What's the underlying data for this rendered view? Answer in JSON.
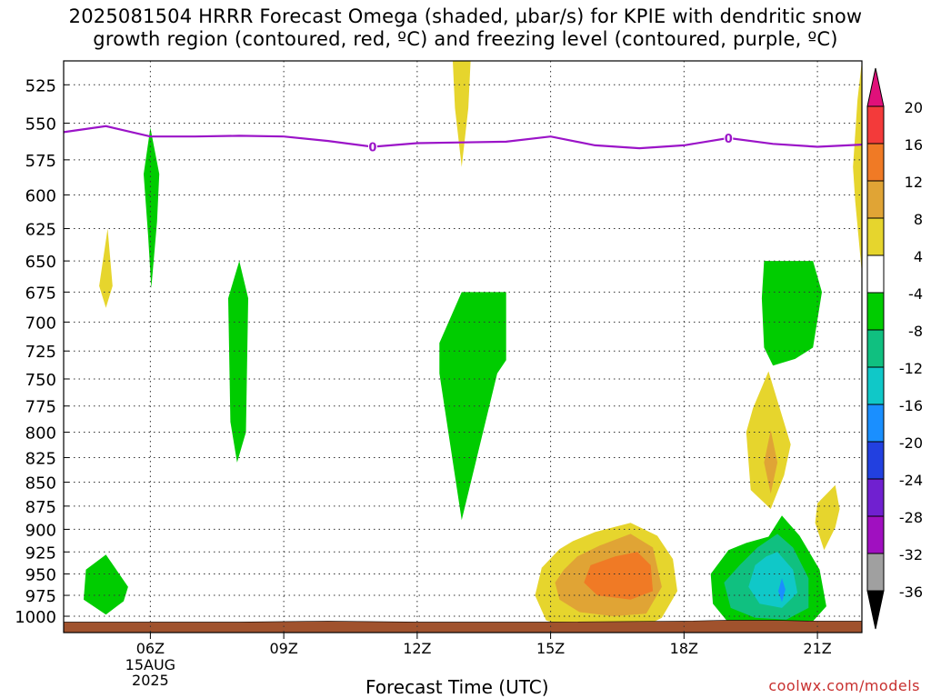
{
  "title_line1": "2025081504 HRRR Forecast Omega (shaded, µbar/s) for KPIE with dendritic snow",
  "title_line2": "growth region (contoured, red, ºC) and freezing level (contoured, purple, ºC)",
  "credit": "coolwx.com/models",
  "chart_data": {
    "type": "heatmap",
    "title": "2025081504 HRRR Forecast Omega (shaded, µbar/s) for KPIE with dendritic snow growth region (contoured, red, ºC) and freezing level (contoured, purple, ºC)",
    "xlabel": "Forecast Time (UTC)",
    "ylabel": "",
    "y_ticks": [
      "525",
      "550",
      "575",
      "600",
      "625",
      "650",
      "675",
      "700",
      "725",
      "750",
      "775",
      "800",
      "825",
      "850",
      "875",
      "900",
      "925",
      "950",
      "975",
      "1000"
    ],
    "y_range_mb": [
      510,
      1020
    ],
    "y_scale": "log pressure",
    "x_range_hours": [
      4.05,
      22.0
    ],
    "x_ticks": [
      {
        "hour": 6,
        "label": "06Z",
        "sub": [
          "15AUG",
          "2025"
        ]
      },
      {
        "hour": 9,
        "label": "09Z"
      },
      {
        "hour": 12,
        "label": "12Z"
      },
      {
        "hour": 15,
        "label": "15Z"
      },
      {
        "hour": 18,
        "label": "18Z"
      },
      {
        "hour": 21,
        "label": "21Z"
      }
    ],
    "grid": true,
    "colorbar": {
      "labels": [
        "20",
        "16",
        "12",
        "8",
        "4",
        "-4",
        "-8",
        "-12",
        "-16",
        "-20",
        "-24",
        "-28",
        "-32",
        "-36"
      ],
      "bins": [
        {
          "range": "16 to 20",
          "color": "#f33a3a"
        },
        {
          "range": "12 to 16",
          "color": "#f07a25"
        },
        {
          "range": "8 to 12",
          "color": "#e0a435"
        },
        {
          "range": "4 to 8",
          "color": "#e6d52d"
        },
        {
          "range": "-4 to 4",
          "color": "#ffffff"
        },
        {
          "range": "-8 to -4",
          "color": "#00cc00"
        },
        {
          "range": "-12 to -8",
          "color": "#10c080"
        },
        {
          "range": "-16 to -12",
          "color": "#10c8c8"
        },
        {
          "range": "-20 to -16",
          "color": "#1a8fff"
        },
        {
          "range": "-24 to -20",
          "color": "#2240e0"
        },
        {
          "range": "-28 to -24",
          "color": "#7020d0"
        },
        {
          "range": "-32 to -28",
          "color": "#a010c0"
        },
        {
          "range": "-36 to -32",
          "color": "#a0a0a0"
        }
      ],
      "top_extension_color": "#e0107a",
      "bottom_extension_color": "#000000"
    },
    "freezing_level": {
      "label": "0",
      "color": "#9b14c8",
      "points": [
        [
          4.05,
          556
        ],
        [
          5.0,
          552
        ],
        [
          6.0,
          559
        ],
        [
          7.0,
          559
        ],
        [
          8.0,
          558.5
        ],
        [
          9.0,
          559
        ],
        [
          10.0,
          562
        ],
        [
          11.0,
          566
        ],
        [
          12.0,
          563.5
        ],
        [
          13.0,
          563
        ],
        [
          14.0,
          562.5
        ],
        [
          15.0,
          559
        ],
        [
          16.0,
          565
        ],
        [
          17.0,
          567
        ],
        [
          18.0,
          565
        ],
        [
          19.0,
          560
        ],
        [
          20.0,
          564
        ],
        [
          21.0,
          566
        ],
        [
          22.0,
          564.5
        ]
      ]
    },
    "omega_regions": [
      {
        "value_range": "-8 to -4",
        "color": "#00cc00",
        "points": [
          [
            5.5,
            965
          ],
          [
            5.0,
            928
          ],
          [
            4.55,
            945
          ],
          [
            4.5,
            980
          ],
          [
            5.0,
            998
          ],
          [
            5.4,
            982
          ]
        ]
      },
      {
        "value_range": "4 to 8",
        "color": "#e6d52d",
        "points": [
          [
            5.04,
            625
          ],
          [
            4.85,
            670
          ],
          [
            5.0,
            688
          ],
          [
            5.15,
            670
          ]
        ]
      },
      {
        "value_range": "-8 to -4",
        "color": "#00cc00",
        "points": [
          [
            6.0,
            553
          ],
          [
            5.85,
            585
          ],
          [
            5.95,
            630
          ],
          [
            6.02,
            672
          ],
          [
            6.15,
            620
          ],
          [
            6.2,
            585
          ]
        ]
      },
      {
        "value_range": "-8 to -4",
        "color": "#00cc00",
        "points": [
          [
            8.0,
            650
          ],
          [
            7.75,
            680
          ],
          [
            7.8,
            790
          ],
          [
            7.95,
            830
          ],
          [
            8.15,
            800
          ],
          [
            8.2,
            680
          ]
        ]
      },
      {
        "value_range": "-8 to -4",
        "color": "#00cc00",
        "points": [
          [
            13.0,
            675
          ],
          [
            14.0,
            675
          ],
          [
            14.0,
            733
          ],
          [
            13.8,
            745
          ],
          [
            13.0,
            890
          ],
          [
            12.5,
            745
          ],
          [
            12.5,
            718
          ]
        ]
      },
      {
        "value_range": "4 to 8",
        "color": "#e6d52d",
        "points": [
          [
            13.0,
            510
          ],
          [
            13.2,
            510
          ],
          [
            13.15,
            540
          ],
          [
            13.0,
            580
          ],
          [
            12.85,
            540
          ],
          [
            12.8,
            510
          ]
        ]
      },
      {
        "value_range": "-8 to -4",
        "color": "#00cc00",
        "points": [
          [
            19.8,
            650
          ],
          [
            20.9,
            650
          ],
          [
            21.1,
            675
          ],
          [
            20.9,
            722
          ],
          [
            20.5,
            732
          ],
          [
            20.0,
            738
          ],
          [
            19.8,
            722
          ],
          [
            19.75,
            680
          ]
        ]
      },
      {
        "value_range": "4 to 8",
        "color": "#e6d52d",
        "points": [
          [
            19.9,
            743
          ],
          [
            19.55,
            777
          ],
          [
            19.4,
            800
          ],
          [
            19.5,
            858
          ],
          [
            19.95,
            878
          ],
          [
            20.25,
            843
          ],
          [
            20.4,
            812
          ],
          [
            20.1,
            770
          ]
        ]
      },
      {
        "value_range": "8 to 12",
        "color": "#e0a435",
        "points": [
          [
            19.95,
            798
          ],
          [
            19.8,
            830
          ],
          [
            19.95,
            862
          ],
          [
            20.1,
            830
          ]
        ]
      },
      {
        "value_range": "4 to 8",
        "color": "#e6d52d",
        "points": [
          [
            21.4,
            853
          ],
          [
            21.0,
            872
          ],
          [
            20.95,
            893
          ],
          [
            21.15,
            923
          ],
          [
            21.4,
            898
          ],
          [
            21.5,
            878
          ]
        ]
      },
      {
        "value_range": "4 to 8",
        "color": "#e6d52d",
        "points": [
          [
            22.0,
            510
          ],
          [
            21.9,
            535
          ],
          [
            21.8,
            580
          ],
          [
            21.85,
            605
          ],
          [
            22.0,
            660
          ]
        ]
      },
      {
        "value_range": "4 to 8",
        "color": "#e6d52d",
        "points": [
          [
            15.2,
            922
          ],
          [
            14.8,
            943
          ],
          [
            14.65,
            975
          ],
          [
            14.9,
            1005
          ],
          [
            15.3,
            1012
          ],
          [
            16.2,
            1018
          ],
          [
            17.0,
            1016
          ],
          [
            17.5,
            1002
          ],
          [
            17.85,
            970
          ],
          [
            17.75,
            933
          ],
          [
            17.4,
            907
          ],
          [
            16.8,
            893
          ],
          [
            16.0,
            903
          ],
          [
            15.5,
            913
          ]
        ]
      },
      {
        "value_range": "8 to 12",
        "color": "#e0a435",
        "points": [
          [
            15.3,
            945
          ],
          [
            15.1,
            960
          ],
          [
            15.2,
            980
          ],
          [
            15.65,
            995
          ],
          [
            16.4,
            1000
          ],
          [
            17.15,
            997
          ],
          [
            17.5,
            965
          ],
          [
            17.3,
            920
          ],
          [
            16.8,
            905
          ],
          [
            16.1,
            918
          ],
          [
            15.6,
            930
          ]
        ]
      },
      {
        "value_range": "12 to 16",
        "color": "#f07a25",
        "points": [
          [
            15.9,
            940
          ],
          [
            15.75,
            960
          ],
          [
            16.05,
            975
          ],
          [
            16.8,
            980
          ],
          [
            17.3,
            970
          ],
          [
            17.25,
            940
          ],
          [
            16.95,
            925
          ],
          [
            16.45,
            930
          ]
        ]
      },
      {
        "value_range": "-8 to -4",
        "color": "#00cc00",
        "points": [
          [
            19.0,
            923
          ],
          [
            18.6,
            950
          ],
          [
            18.65,
            985
          ],
          [
            19.0,
            1008
          ],
          [
            19.7,
            1015
          ],
          [
            20.3,
            1017
          ],
          [
            20.8,
            1012
          ],
          [
            21.2,
            988
          ],
          [
            21.05,
            945
          ],
          [
            20.6,
            907
          ],
          [
            20.2,
            885
          ],
          [
            19.9,
            908
          ],
          [
            19.4,
            915
          ]
        ]
      },
      {
        "value_range": "-12 to -8",
        "color": "#10c080",
        "points": [
          [
            19.25,
            940
          ],
          [
            18.9,
            960
          ],
          [
            19.05,
            990
          ],
          [
            19.6,
            1002
          ],
          [
            20.3,
            1004
          ],
          [
            20.8,
            990
          ],
          [
            20.8,
            955
          ],
          [
            20.45,
            920
          ],
          [
            20.1,
            905
          ],
          [
            19.65,
            920
          ]
        ]
      },
      {
        "value_range": "-16 to -12",
        "color": "#10c8c8",
        "points": [
          [
            19.6,
            940
          ],
          [
            19.45,
            965
          ],
          [
            19.7,
            985
          ],
          [
            20.2,
            990
          ],
          [
            20.55,
            972
          ],
          [
            20.45,
            945
          ],
          [
            20.1,
            925
          ],
          [
            19.85,
            930
          ]
        ]
      },
      {
        "value_range": "-20 to -16",
        "color": "#1a8fff",
        "points": [
          [
            20.2,
            955
          ],
          [
            20.12,
            970
          ],
          [
            20.2,
            983
          ],
          [
            20.28,
            968
          ]
        ]
      }
    ],
    "terrain_color": "#a0522d"
  }
}
